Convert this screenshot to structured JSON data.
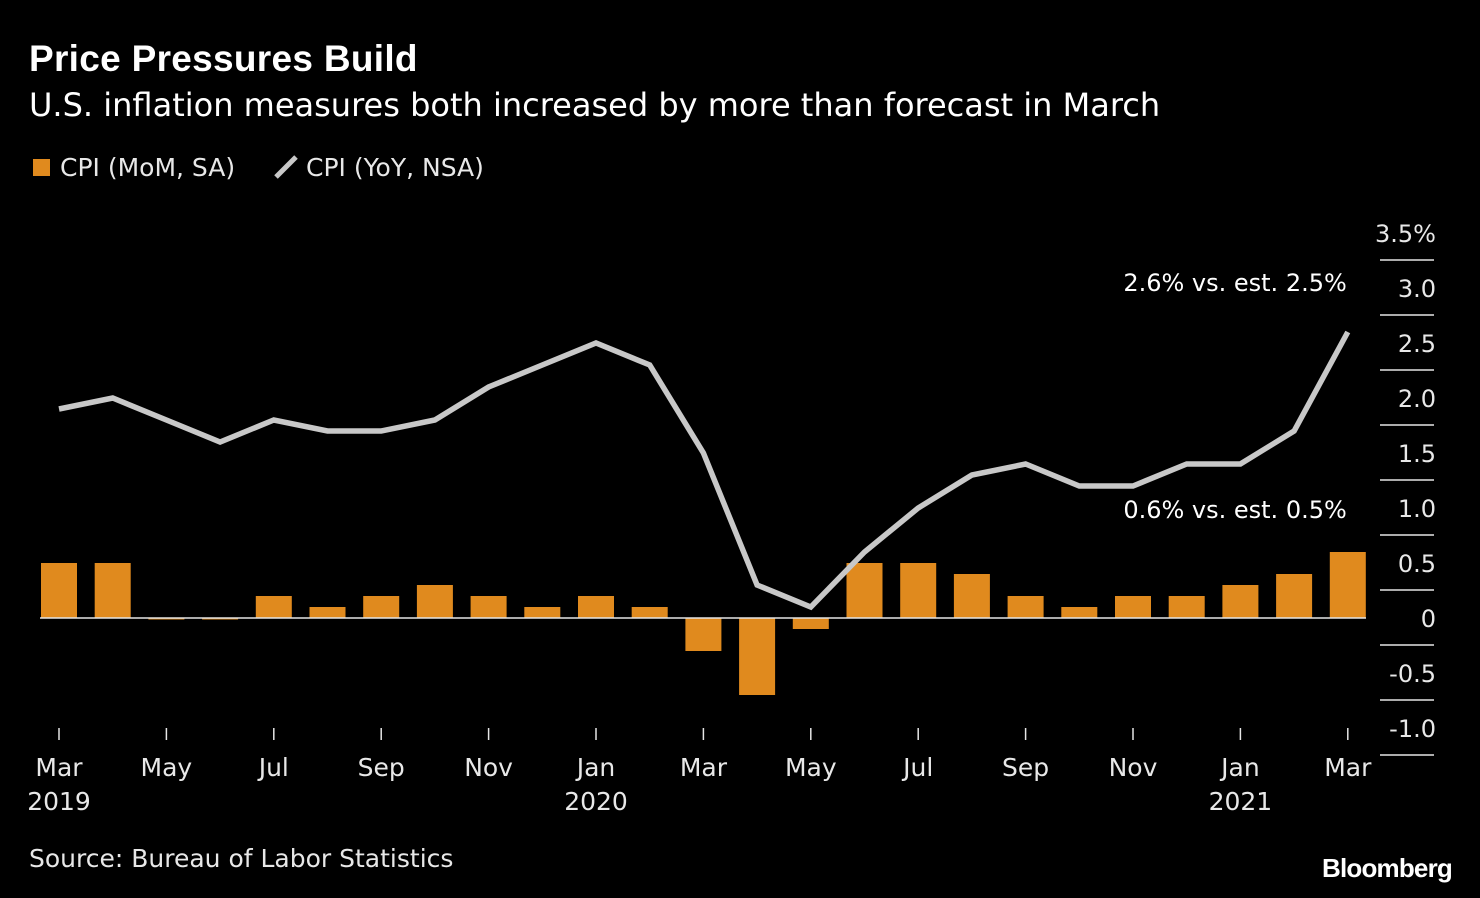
{
  "chart_data": {
    "type": "bar+line",
    "title": "Price Pressures Build",
    "subtitle": "U.S. inflation measures both increased by more than forecast in March",
    "x": [
      "2019-03",
      "2019-04",
      "2019-05",
      "2019-06",
      "2019-07",
      "2019-08",
      "2019-09",
      "2019-10",
      "2019-11",
      "2019-12",
      "2020-01",
      "2020-02",
      "2020-03",
      "2020-04",
      "2020-05",
      "2020-06",
      "2020-07",
      "2020-08",
      "2020-09",
      "2020-10",
      "2020-11",
      "2020-12",
      "2021-01",
      "2021-02",
      "2021-03"
    ],
    "x_tick_labels": [
      {
        "month": "Mar",
        "year": "2019"
      },
      {
        "month": "May",
        "year": ""
      },
      {
        "month": "Jul",
        "year": ""
      },
      {
        "month": "Sep",
        "year": ""
      },
      {
        "month": "Nov",
        "year": ""
      },
      {
        "month": "Jan",
        "year": "2020"
      },
      {
        "month": "Mar",
        "year": ""
      },
      {
        "month": "May",
        "year": ""
      },
      {
        "month": "Jul",
        "year": ""
      },
      {
        "month": "Sep",
        "year": ""
      },
      {
        "month": "Nov",
        "year": ""
      },
      {
        "month": "Jan",
        "year": "2021"
      },
      {
        "month": "Mar",
        "year": ""
      }
    ],
    "series": [
      {
        "name": "CPI (MoM, SA)",
        "kind": "bar",
        "color": "#e08a1e",
        "values": [
          0.5,
          0.5,
          0.0,
          0.0,
          0.2,
          0.1,
          0.2,
          0.3,
          0.2,
          0.1,
          0.2,
          0.1,
          -0.3,
          -0.7,
          -0.1,
          0.5,
          0.5,
          0.4,
          0.2,
          0.1,
          0.2,
          0.2,
          0.3,
          0.4,
          0.6
        ]
      },
      {
        "name": "CPI (YoY, NSA)",
        "kind": "line",
        "color": "#c8c8c8",
        "values": [
          1.9,
          2.0,
          1.8,
          1.6,
          1.8,
          1.7,
          1.7,
          1.8,
          2.1,
          2.3,
          2.5,
          2.3,
          1.5,
          0.3,
          0.1,
          0.6,
          1.0,
          1.3,
          1.4,
          1.2,
          1.2,
          1.4,
          1.4,
          1.7,
          2.6
        ]
      }
    ],
    "y_axis": {
      "position": "right",
      "ylim": [
        -1.0,
        3.5
      ],
      "ticks": [
        3.5,
        3.0,
        2.5,
        2.0,
        1.5,
        1.0,
        0.5,
        0,
        -0.5,
        -1.0
      ],
      "tick_labels": [
        "3.5%",
        "3.0",
        "2.5",
        "2.0",
        "1.5",
        "1.0",
        "0.5",
        "0",
        "-0.5",
        "-1.0"
      ]
    },
    "annotations": [
      {
        "text": "2.6% vs. est. 2.5%",
        "series": "CPI (YoY, NSA)",
        "value": 2.6
      },
      {
        "text": "0.6% vs. est. 0.5%",
        "series": "CPI (MoM, SA)",
        "value": 0.6
      }
    ],
    "legend_placement": "top-left",
    "grid": false,
    "source": "Source: Bureau of Labor Statistics",
    "brand": "Bloomberg"
  }
}
